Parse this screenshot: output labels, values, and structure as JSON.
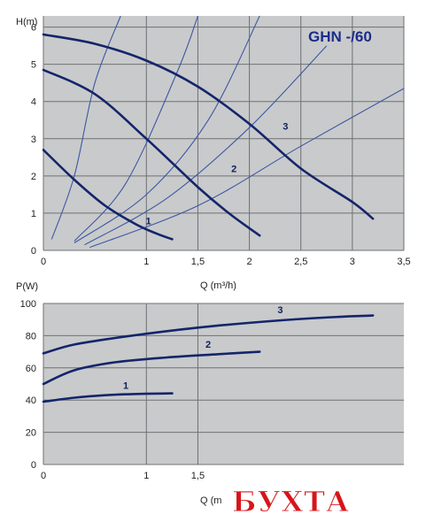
{
  "colors": {
    "plot_bg": "#c9cacb",
    "grid": "#6f7073",
    "pump_curve": "#13256b",
    "system_curve": "#3c58a3",
    "title": "#1a2d8a",
    "watermark": "#d8141a"
  },
  "watermark_text": "БУХТА",
  "chart_data": [
    {
      "type": "line",
      "title": "GHN -/60",
      "xlabel": "Q (m³/h)",
      "ylabel": "H(m)",
      "xlim": [
        0,
        3.5
      ],
      "ylim": [
        0,
        6.3
      ],
      "x_ticks": [
        "0",
        "1",
        "1,5",
        "2",
        "2,5",
        "3",
        "3,5"
      ],
      "y_ticks": [
        "0",
        "1",
        "2",
        "3",
        "4",
        "5",
        "6"
      ],
      "grid": true,
      "series": [
        {
          "name": "1",
          "x": [
            0,
            0.3,
            0.6,
            0.9,
            1.1,
            1.25
          ],
          "y": [
            2.7,
            1.9,
            1.2,
            0.7,
            0.45,
            0.3
          ]
        },
        {
          "name": "2",
          "x": [
            0,
            0.5,
            1.0,
            1.5,
            1.8,
            2.1
          ],
          "y": [
            4.85,
            4.2,
            3.0,
            1.7,
            1.0,
            0.4
          ]
        },
        {
          "name": "3",
          "x": [
            0,
            0.5,
            1.0,
            1.5,
            2.0,
            2.5,
            3.0,
            3.2
          ],
          "y": [
            5.8,
            5.55,
            5.1,
            4.4,
            3.4,
            2.2,
            1.3,
            0.85
          ]
        }
      ],
      "system_curves": [
        {
          "x": [
            0.08,
            0.3,
            0.5,
            0.75
          ],
          "y": [
            0.3,
            2.0,
            4.5,
            6.3
          ]
        },
        {
          "x": [
            0.3,
            0.8,
            1.3,
            1.5
          ],
          "y": [
            0.25,
            1.8,
            4.8,
            6.3
          ]
        },
        {
          "x": [
            0.3,
            1.0,
            1.6,
            2.1
          ],
          "y": [
            0.2,
            1.5,
            3.5,
            6.3
          ]
        },
        {
          "x": [
            0.4,
            1.2,
            2.0,
            2.75
          ],
          "y": [
            0.15,
            1.4,
            3.3,
            5.5
          ]
        },
        {
          "x": [
            0.45,
            1.5,
            2.5,
            3.5
          ],
          "y": [
            0.08,
            1.2,
            2.8,
            4.35
          ]
        }
      ],
      "label_points": [
        {
          "text": "1",
          "x": 1.02,
          "y": 0.7
        },
        {
          "text": "2",
          "x": 1.85,
          "y": 2.1
        },
        {
          "text": "3",
          "x": 2.35,
          "y": 3.25
        }
      ]
    },
    {
      "type": "line",
      "xlabel": "Q (m",
      "ylabel": "P(W)",
      "xlim": [
        0,
        3.5
      ],
      "ylim": [
        0,
        100
      ],
      "x_ticks": [
        "0",
        "1",
        "1,5"
      ],
      "y_ticks": [
        "0",
        "20",
        "40",
        "60",
        "80",
        "100"
      ],
      "grid": true,
      "series": [
        {
          "name": "1",
          "x": [
            0,
            0.3,
            0.6,
            0.9,
            1.25
          ],
          "y": [
            39,
            41.5,
            43,
            43.8,
            44.2
          ]
        },
        {
          "name": "2",
          "x": [
            0,
            0.3,
            0.7,
            1.2,
            1.7,
            2.1
          ],
          "y": [
            50,
            58.5,
            63.5,
            66.5,
            68.5,
            70
          ]
        },
        {
          "name": "3",
          "x": [
            0,
            0.3,
            0.8,
            1.5,
            2.2,
            2.8,
            3.2
          ],
          "y": [
            69,
            74.5,
            79.5,
            85,
            89,
            91.5,
            92.5
          ]
        }
      ],
      "label_points": [
        {
          "text": "1",
          "x": 0.8,
          "y": 47
        },
        {
          "text": "2",
          "x": 1.6,
          "y": 72.5
        },
        {
          "text": "3",
          "x": 2.3,
          "y": 94
        }
      ]
    }
  ]
}
